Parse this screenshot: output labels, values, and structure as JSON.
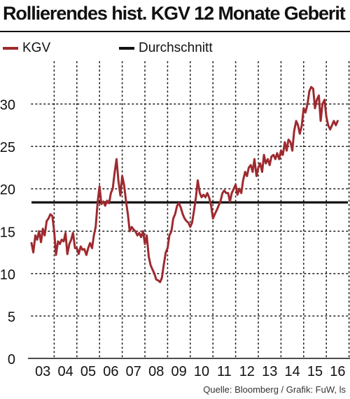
{
  "chart_data": {
    "type": "line",
    "title": "Rollierendes hist. KGV 12 Monate Geberit",
    "xlabel": "",
    "ylabel": "",
    "x_tick_labels": [
      "03",
      "04",
      "05",
      "06",
      "07",
      "08",
      "09",
      "10",
      "11",
      "12",
      "13",
      "14",
      "15",
      "16"
    ],
    "x_range": [
      2003.0,
      2016.95
    ],
    "ylim": [
      0,
      35
    ],
    "y_ticks": [
      0,
      5,
      10,
      15,
      20,
      25,
      30
    ],
    "grid": "dotted",
    "legend_position": "top-left",
    "series": [
      {
        "name": "KGV",
        "color": "#9e2a2f",
        "points": [
          [
            2003.0,
            13.6
          ],
          [
            2003.08,
            12.5
          ],
          [
            2003.17,
            14.5
          ],
          [
            2003.25,
            14.0
          ],
          [
            2003.33,
            15.0
          ],
          [
            2003.42,
            13.7
          ],
          [
            2003.5,
            15.3
          ],
          [
            2003.58,
            14.5
          ],
          [
            2003.67,
            16.2
          ],
          [
            2003.75,
            16.5
          ],
          [
            2003.83,
            17.0
          ],
          [
            2003.92,
            16.8
          ],
          [
            2004.0,
            15.0
          ],
          [
            2004.08,
            12.2
          ],
          [
            2004.17,
            13.8
          ],
          [
            2004.25,
            13.5
          ],
          [
            2004.33,
            14.0
          ],
          [
            2004.42,
            13.8
          ],
          [
            2004.5,
            14.8
          ],
          [
            2004.58,
            12.3
          ],
          [
            2004.67,
            13.5
          ],
          [
            2004.75,
            14.0
          ],
          [
            2004.83,
            14.8
          ],
          [
            2004.92,
            13.0
          ],
          [
            2005.0,
            13.0
          ],
          [
            2005.08,
            12.3
          ],
          [
            2005.17,
            13.2
          ],
          [
            2005.25,
            12.8
          ],
          [
            2005.33,
            12.9
          ],
          [
            2005.42,
            12.2
          ],
          [
            2005.5,
            13.0
          ],
          [
            2005.58,
            13.6
          ],
          [
            2005.67,
            13.0
          ],
          [
            2005.75,
            14.5
          ],
          [
            2005.83,
            15.5
          ],
          [
            2005.92,
            18.5
          ],
          [
            2006.0,
            20.3
          ],
          [
            2006.08,
            18.2
          ],
          [
            2006.17,
            18.5
          ],
          [
            2006.25,
            18.0
          ],
          [
            2006.33,
            18.6
          ],
          [
            2006.42,
            18.3
          ],
          [
            2006.5,
            19.5
          ],
          [
            2006.58,
            20.0
          ],
          [
            2006.67,
            22.0
          ],
          [
            2006.75,
            23.5
          ],
          [
            2006.83,
            21.0
          ],
          [
            2006.92,
            19.2
          ],
          [
            2007.0,
            21.5
          ],
          [
            2007.08,
            20.5
          ],
          [
            2007.17,
            18.5
          ],
          [
            2007.25,
            17.0
          ],
          [
            2007.33,
            15.0
          ],
          [
            2007.42,
            15.5
          ],
          [
            2007.5,
            15.2
          ],
          [
            2007.58,
            15.0
          ],
          [
            2007.67,
            14.5
          ],
          [
            2007.75,
            14.8
          ],
          [
            2007.83,
            14.3
          ],
          [
            2007.92,
            15.0
          ],
          [
            2008.0,
            13.5
          ],
          [
            2008.08,
            14.5
          ],
          [
            2008.17,
            12.0
          ],
          [
            2008.25,
            11.0
          ],
          [
            2008.33,
            10.5
          ],
          [
            2008.42,
            10.0
          ],
          [
            2008.5,
            9.3
          ],
          [
            2008.58,
            9.2
          ],
          [
            2008.67,
            9.0
          ],
          [
            2008.75,
            9.5
          ],
          [
            2008.83,
            11.0
          ],
          [
            2008.92,
            12.5
          ],
          [
            2009.0,
            13.0
          ],
          [
            2009.08,
            14.5
          ],
          [
            2009.17,
            15.0
          ],
          [
            2009.25,
            16.5
          ],
          [
            2009.33,
            17.0
          ],
          [
            2009.42,
            18.0
          ],
          [
            2009.5,
            18.3
          ],
          [
            2009.58,
            17.8
          ],
          [
            2009.67,
            17.0
          ],
          [
            2009.75,
            16.5
          ],
          [
            2009.83,
            16.2
          ],
          [
            2009.92,
            16.0
          ],
          [
            2010.0,
            15.5
          ],
          [
            2010.08,
            16.0
          ],
          [
            2010.17,
            17.5
          ],
          [
            2010.25,
            19.0
          ],
          [
            2010.33,
            21.0
          ],
          [
            2010.42,
            19.5
          ],
          [
            2010.5,
            19.0
          ],
          [
            2010.58,
            19.3
          ],
          [
            2010.67,
            19.0
          ],
          [
            2010.75,
            19.5
          ],
          [
            2010.83,
            19.0
          ],
          [
            2010.92,
            18.0
          ],
          [
            2011.0,
            16.5
          ],
          [
            2011.08,
            17.0
          ],
          [
            2011.17,
            17.5
          ],
          [
            2011.25,
            18.0
          ],
          [
            2011.33,
            18.5
          ],
          [
            2011.42,
            19.5
          ],
          [
            2011.5,
            19.8
          ],
          [
            2011.58,
            19.5
          ],
          [
            2011.67,
            19.5
          ],
          [
            2011.75,
            18.5
          ],
          [
            2011.83,
            19.5
          ],
          [
            2011.92,
            20.0
          ],
          [
            2012.0,
            20.5
          ],
          [
            2012.08,
            19.3
          ],
          [
            2012.17,
            20.0
          ],
          [
            2012.25,
            19.5
          ],
          [
            2012.33,
            21.0
          ],
          [
            2012.42,
            22.0
          ],
          [
            2012.5,
            21.5
          ],
          [
            2012.58,
            22.5
          ],
          [
            2012.67,
            22.8
          ],
          [
            2012.75,
            22.0
          ],
          [
            2012.83,
            23.5
          ],
          [
            2012.92,
            21.5
          ],
          [
            2013.0,
            22.5
          ],
          [
            2013.08,
            23.0
          ],
          [
            2013.17,
            22.0
          ],
          [
            2013.25,
            24.0
          ],
          [
            2013.33,
            23.0
          ],
          [
            2013.42,
            23.5
          ],
          [
            2013.5,
            22.8
          ],
          [
            2013.58,
            23.8
          ],
          [
            2013.67,
            24.0
          ],
          [
            2013.75,
            23.5
          ],
          [
            2013.83,
            24.2
          ],
          [
            2013.92,
            23.5
          ],
          [
            2014.0,
            24.5
          ],
          [
            2014.08,
            24.0
          ],
          [
            2014.17,
            25.5
          ],
          [
            2014.25,
            24.5
          ],
          [
            2014.33,
            25.8
          ],
          [
            2014.42,
            25.5
          ],
          [
            2014.5,
            24.5
          ],
          [
            2014.58,
            26.8
          ],
          [
            2014.67,
            28.0
          ],
          [
            2014.75,
            27.5
          ],
          [
            2014.83,
            26.5
          ],
          [
            2014.92,
            27.5
          ],
          [
            2015.0,
            29.5
          ],
          [
            2015.08,
            29.0
          ],
          [
            2015.17,
            30.0
          ],
          [
            2015.25,
            31.5
          ],
          [
            2015.33,
            32.0
          ],
          [
            2015.42,
            31.8
          ],
          [
            2015.5,
            29.5
          ],
          [
            2015.58,
            30.5
          ],
          [
            2015.67,
            31.0
          ],
          [
            2015.75,
            28.0
          ],
          [
            2015.83,
            30.0
          ],
          [
            2015.92,
            30.5
          ],
          [
            2016.0,
            28.5
          ],
          [
            2016.08,
            27.5
          ],
          [
            2016.17,
            27.0
          ],
          [
            2016.25,
            27.5
          ],
          [
            2016.33,
            28.0
          ],
          [
            2016.42,
            27.5
          ],
          [
            2016.5,
            28.0
          ]
        ]
      },
      {
        "name": "Durchschnitt",
        "color": "#111111",
        "points": [
          [
            2003.0,
            18.4
          ],
          [
            2016.95,
            18.4
          ]
        ]
      }
    ],
    "source_note": "Quelle: Bloomberg / Grafik: FuW, ls"
  }
}
